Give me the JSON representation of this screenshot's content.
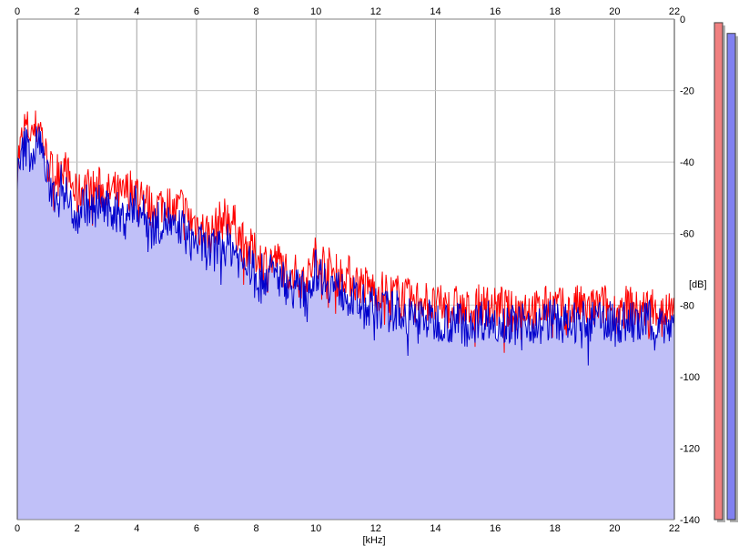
{
  "chart_data": {
    "type": "area",
    "xlabel": "[kHz]",
    "ylabel": "[dB]",
    "xlim": [
      0,
      22
    ],
    "ylim": [
      -140,
      0
    ],
    "x_ticks": [
      "0",
      "2",
      "4",
      "6",
      "8",
      "10",
      "12",
      "14",
      "16",
      "18",
      "20",
      "22"
    ],
    "y_ticks": [
      "0",
      "-20",
      "-40",
      "-60",
      "-80",
      "-100",
      "-120",
      "-140"
    ],
    "grid": true,
    "series": [
      {
        "color": "#ff0000",
        "x": [
          0,
          0.25,
          0.5,
          0.75,
          1,
          1.25,
          1.5,
          1.75,
          2,
          2.25,
          2.5,
          2.75,
          3,
          3.25,
          3.5,
          3.75,
          4,
          4.25,
          4.5,
          4.75,
          5,
          5.25,
          5.5,
          5.75,
          6,
          6.25,
          6.5,
          6.75,
          7,
          7.25,
          7.5,
          7.75,
          8,
          8.25,
          8.5,
          8.75,
          9,
          9.25,
          9.5,
          9.75,
          10,
          10.25,
          10.5,
          10.75,
          11,
          11.25,
          11.5,
          11.75,
          12,
          12.25,
          12.5,
          12.75,
          13,
          13.25,
          13.5,
          13.75,
          14,
          14.25,
          14.5,
          14.75,
          15,
          15.25,
          15.5,
          15.75,
          16,
          16.25,
          16.5,
          16.75,
          17,
          17.25,
          17.5,
          17.75,
          18,
          18.25,
          18.5,
          18.75,
          19,
          19.25,
          19.5,
          19.75,
          20,
          20.25,
          20.5,
          20.75,
          21,
          21.25,
          21.5,
          21.75,
          22
        ],
        "values": [
          -40,
          -30,
          -32,
          -29,
          -40,
          -44,
          -40,
          -45,
          -50,
          -46,
          -48,
          -47,
          -49,
          -48,
          -50,
          -47,
          -48,
          -50,
          -53,
          -52,
          -51,
          -54,
          -52,
          -56,
          -57,
          -59,
          -60,
          -57,
          -55,
          -57,
          -62,
          -64,
          -66,
          -68,
          -67,
          -68,
          -70,
          -71,
          -73,
          -72,
          -66,
          -68,
          -70,
          -72,
          -71,
          -73,
          -74,
          -75,
          -76,
          -76,
          -77,
          -77,
          -78,
          -79,
          -78,
          -79,
          -81,
          -80,
          -81,
          -80,
          -82,
          -81,
          -80,
          -80,
          -81,
          -80,
          -82,
          -81,
          -80,
          -81,
          -82,
          -80,
          -80,
          -81,
          -82,
          -80,
          -81,
          -81,
          -80,
          -80,
          -82,
          -81,
          -80,
          -82,
          -81,
          -80,
          -81,
          -82,
          -80
        ]
      },
      {
        "color": "#0000cc",
        "x": [
          0,
          0.25,
          0.5,
          0.75,
          1,
          1.25,
          1.5,
          1.75,
          2,
          2.25,
          2.5,
          2.75,
          3,
          3.25,
          3.5,
          3.75,
          4,
          4.25,
          4.5,
          4.75,
          5,
          5.25,
          5.5,
          5.75,
          6,
          6.25,
          6.5,
          6.75,
          7,
          7.25,
          7.5,
          7.75,
          8,
          8.25,
          8.5,
          8.75,
          9,
          9.25,
          9.5,
          9.75,
          10,
          10.25,
          10.5,
          10.75,
          11,
          11.25,
          11.5,
          11.75,
          12,
          12.25,
          12.5,
          12.75,
          13,
          13.25,
          13.5,
          13.75,
          14,
          14.25,
          14.5,
          14.75,
          15,
          15.25,
          15.5,
          15.75,
          16,
          16.25,
          16.5,
          16.75,
          17,
          17.25,
          17.5,
          17.75,
          18,
          18.25,
          18.5,
          18.75,
          19,
          19.25,
          19.5,
          19.75,
          20,
          20.25,
          20.5,
          20.75,
          21,
          21.25,
          21.5,
          21.75,
          22
        ],
        "values": [
          -45,
          -35,
          -38,
          -33,
          -45,
          -49,
          -46,
          -52,
          -55,
          -51,
          -54,
          -51,
          -54,
          -53,
          -56,
          -53,
          -52,
          -55,
          -58,
          -57,
          -56,
          -60,
          -58,
          -62,
          -62,
          -64,
          -65,
          -64,
          -63,
          -64,
          -68,
          -69,
          -70,
          -72,
          -71,
          -72,
          -74,
          -75,
          -76,
          -75,
          -70,
          -72,
          -74,
          -76,
          -76,
          -78,
          -80,
          -80,
          -81,
          -81,
          -82,
          -81,
          -83,
          -84,
          -83,
          -84,
          -85,
          -84,
          -85,
          -84,
          -86,
          -85,
          -84,
          -84,
          -85,
          -84,
          -86,
          -85,
          -84,
          -85,
          -86,
          -84,
          -84,
          -85,
          -86,
          -84,
          -85,
          -85,
          -84,
          -84,
          -86,
          -85,
          -84,
          -86,
          -85,
          -84,
          -85,
          -86,
          -84
        ]
      }
    ],
    "level_meters": [
      {
        "color": "#f08080",
        "level": -1.0
      },
      {
        "color": "#8080f0",
        "level": -4.0
      }
    ]
  }
}
